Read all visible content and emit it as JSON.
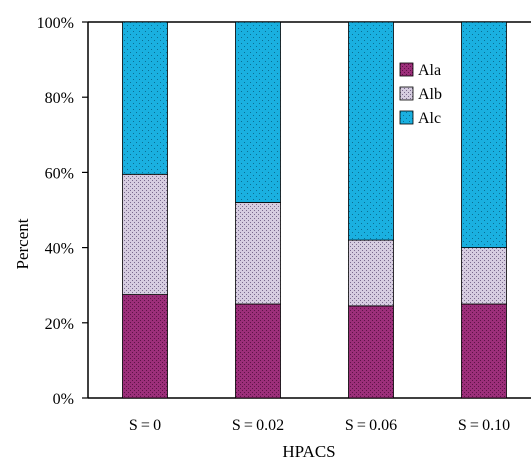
{
  "chart_data": {
    "type": "bar",
    "stacked": true,
    "percent": true,
    "title": "",
    "xlabel": "HPACS",
    "ylabel": "Percent",
    "ylim": [
      0,
      100
    ],
    "yticks": [
      "0%",
      "20%",
      "40%",
      "60%",
      "80%",
      "100%"
    ],
    "categories": [
      "S = 0",
      "S = 0.02",
      "S = 0.06",
      "S = 0.10"
    ],
    "series": [
      {
        "name": "Ala",
        "values": [
          27.5,
          25,
          24.5,
          25
        ],
        "color": "#9c2f7a"
      },
      {
        "name": "Alb",
        "values": [
          32,
          27,
          17.5,
          15
        ],
        "color": "#c9bfd6"
      },
      {
        "name": "Alc",
        "values": [
          40.5,
          48,
          58,
          60
        ],
        "color": "#1ab0e0"
      }
    ],
    "legend": {
      "position": "top-right"
    }
  }
}
